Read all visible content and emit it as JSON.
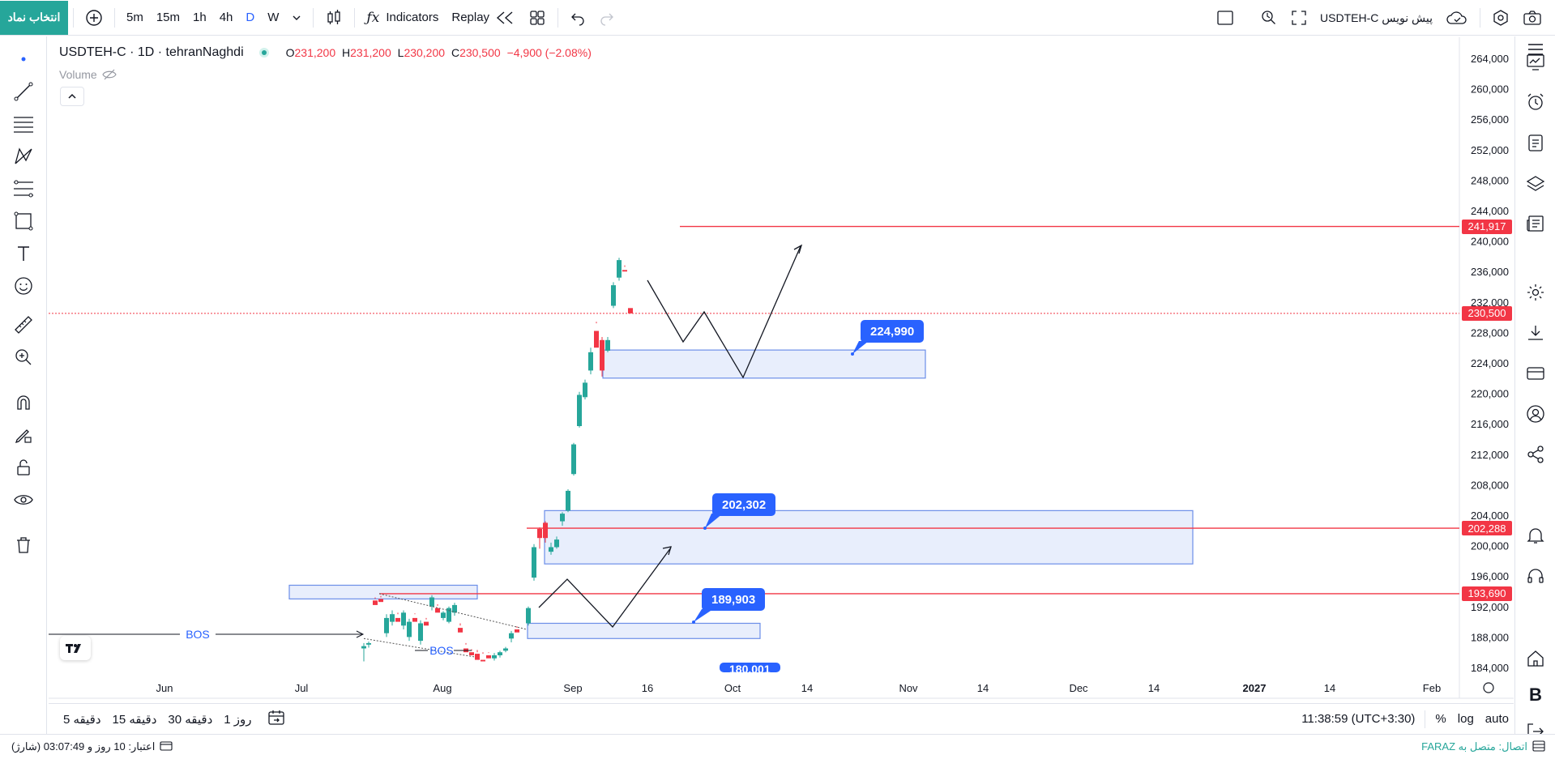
{
  "toolbar": {
    "symbol_button": "انتخاب نماد",
    "intervals": [
      "5m",
      "15m",
      "1h",
      "4h",
      "D",
      "W"
    ],
    "active_interval": "D",
    "indicators_label": "Indicators",
    "replay_label": "Replay",
    "symbol_name": "USDTEH-C پیش نویس"
  },
  "legend": {
    "title": "USDTEH-C · 1D · tehranNaghdi",
    "o_label": "O",
    "o_value": "231,200",
    "h_label": "H",
    "h_value": "231,200",
    "l_label": "L",
    "l_value": "230,200",
    "c_label": "C",
    "c_value": "230,500",
    "change": "−4,900 (−2.08%)",
    "volume_label": "Volume"
  },
  "price_axis": {
    "ticks": [
      "264,000",
      "260,000",
      "256,000",
      "252,000",
      "248,000",
      "244,000",
      "240,000",
      "236,000",
      "232,000",
      "228,000",
      "224,000",
      "220,000",
      "216,000",
      "212,000",
      "208,000",
      "204,000",
      "200,000",
      "196,000",
      "192,000",
      "188,000",
      "184,000"
    ],
    "markers": [
      {
        "label": "241,917",
        "color": "#f23645"
      },
      {
        "label": "230,500",
        "color": "#f23645"
      },
      {
        "label": "202,288",
        "color": "#f23645"
      },
      {
        "label": "193,690",
        "color": "#f23645"
      }
    ]
  },
  "time_axis": {
    "ticks": [
      "Jun",
      "Jul",
      "Aug",
      "Sep",
      "16",
      "Oct",
      "14",
      "Nov",
      "14",
      "Dec",
      "14",
      "2027",
      "14",
      "Feb"
    ]
  },
  "annotations": {
    "callouts": [
      "224,990",
      "202,302",
      "189,903",
      "180,001"
    ],
    "bos_labels": [
      "BOS",
      "BOS"
    ]
  },
  "bottom": {
    "ranges": [
      "5 دقیقه",
      "15 دقیقه",
      "30 دقیقه",
      "1 روز"
    ],
    "clock": "11:38:59 (UTC+3:30)",
    "percent": "%",
    "log": "log",
    "auto": "auto"
  },
  "status": {
    "credit": "اعتبار: 10 روز و 03:07:49 (شارژ)",
    "connection": "اتصال: متصل به FARAZ"
  },
  "colors": {
    "accent": "#2962ff",
    "up": "#26a69a",
    "down": "#f23645",
    "zone_fill": "#e8eefc",
    "zone_border": "#6c8ee8"
  }
}
